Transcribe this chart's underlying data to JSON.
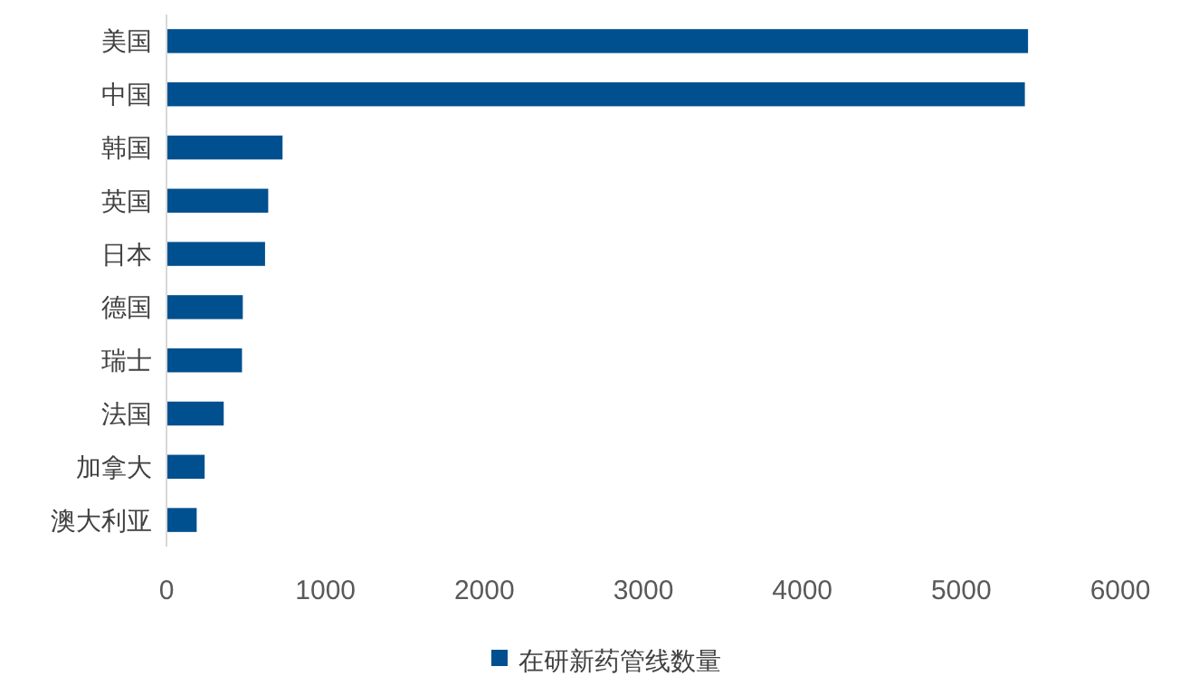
{
  "chart_data": {
    "type": "bar",
    "orientation": "horizontal",
    "categories": [
      "美国",
      "中国",
      "韩国",
      "英国",
      "日本",
      "德国",
      "瑞士",
      "法国",
      "加拿大",
      "澳大利亚"
    ],
    "series": [
      {
        "name": "在研新药管线数量",
        "color": "#00508f",
        "values": [
          5420,
          5400,
          730,
          640,
          620,
          480,
          475,
          360,
          240,
          190
        ]
      }
    ],
    "xlim": [
      0,
      6000
    ],
    "xticks": [
      0,
      1000,
      2000,
      3000,
      4000,
      5000,
      6000
    ],
    "grid": false,
    "legend": "bottom"
  }
}
